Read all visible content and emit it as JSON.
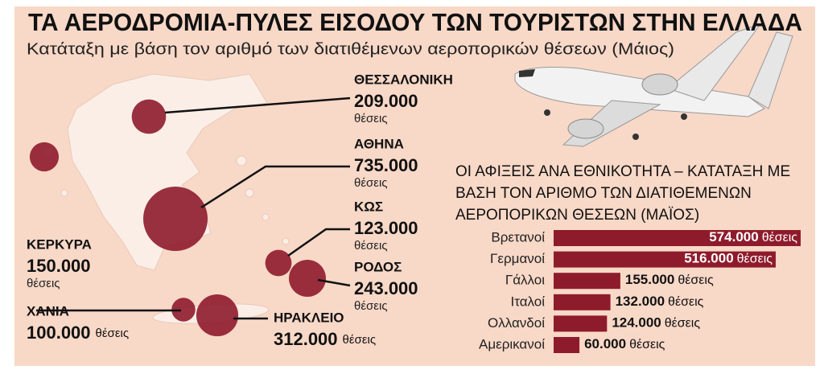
{
  "chart_data": [
    {
      "type": "bubble-map",
      "title": "ΤΑ ΑΕΡΟΔΡΟΜΙΑ-ΠΥΛΕΣ ΕΙΣΟΔΟΥ ΤΩΝ ΤΟΥΡΙΣΤΩΝ ΣΤΗΝ ΕΛΛΑΔΑ",
      "subtitle": "Κατάταξη με βάση τον αριθμό των διατιθέμενων αεροπορικών θέσεων (Μάιος)",
      "categories": [
        "ΘΕΣΣΑΛΟΝΙΚΗ",
        "ΑΘΗΝΑ",
        "ΚΩΣ",
        "ΡΟΔΟΣ",
        "ΚΕΡΚΥΡΑ",
        "ΧΑΝΙΑ",
        "ΗΡΑΚΛΕΙΟ"
      ],
      "values": [
        209000,
        735000,
        123000,
        243000,
        150000,
        100000,
        312000
      ],
      "value_labels": [
        "209.000",
        "735.000",
        "123.000",
        "243.000",
        "150.000",
        "100.000",
        "312.000"
      ],
      "unit": "θέσεις",
      "color": "#8e1b2c"
    },
    {
      "type": "bar",
      "title": "ΟΙ ΑΦΙΞΕΙΣ ΑΝΑ ΕΘΝΙΚΟΤΗΤΑ – ΚΑΤΑΤΑΞΗ ΜΕ ΒΑΣΗ ΤΟΝ ΑΡΙΘΜΟ ΤΩΝ ΔΙΑΤΙΘΕΜΕΝΩΝ ΑΕΡΟΠΟΡΙΚΩΝ ΘΕΣΕΩΝ (ΜΑΪΟΣ)",
      "categories": [
        "Βρετανοί",
        "Γερμανοί",
        "Γάλλοι",
        "Ιταλοί",
        "Ολλανδοί",
        "Αμερικανοί"
      ],
      "values": [
        574000,
        516000,
        155000,
        132000,
        124000,
        60000
      ],
      "value_labels": [
        "574.000",
        "516.000",
        "155.000",
        "132.000",
        "124.000",
        "60.000"
      ],
      "unit": "θέσεις",
      "color": "#8e1b2c"
    }
  ]
}
